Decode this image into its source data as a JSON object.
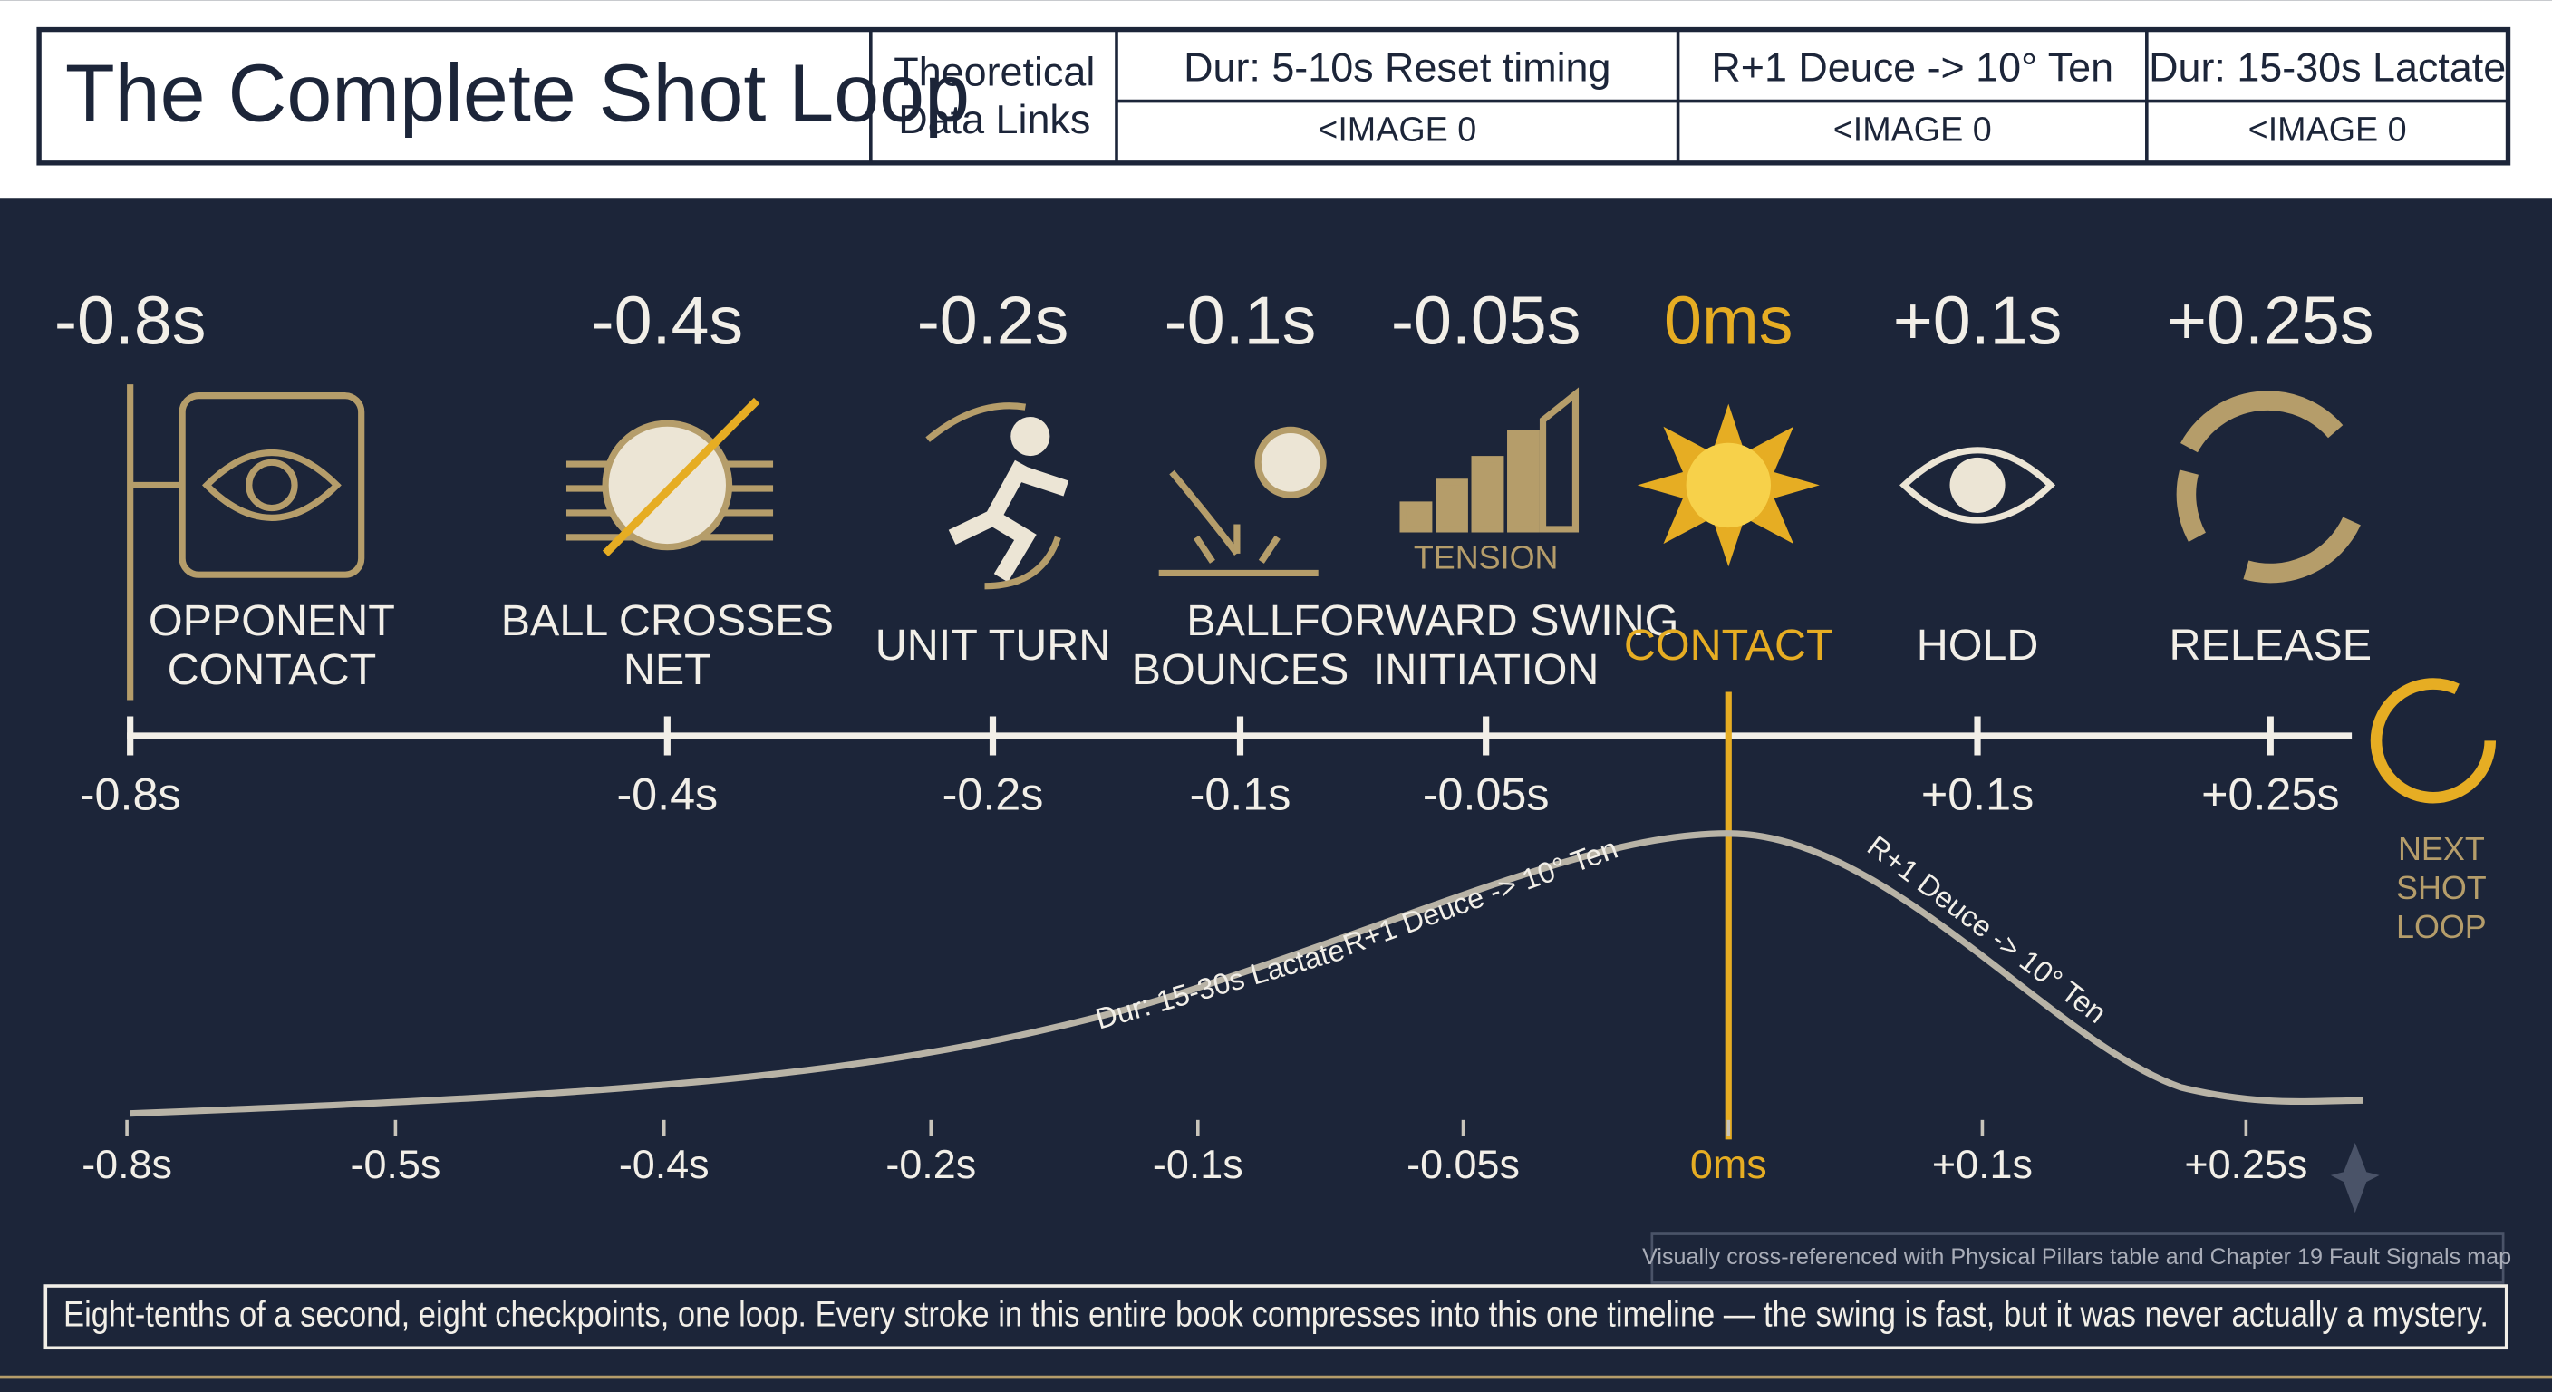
{
  "header": {
    "title": "The Complete Shot Loop",
    "links_label": [
      "Theoretical",
      "Data Links"
    ],
    "columns": [
      {
        "head": "Dur: 5-10s Reset timing",
        "cell": "<IMAGE 0"
      },
      {
        "head": "R+1 Deuce -> 10° Ten",
        "cell": "<IMAGE 0"
      },
      {
        "head": "Dur: 15-30s Lactate",
        "cell": "<IMAGE 0"
      }
    ]
  },
  "checkpoints": [
    {
      "time": "-0.8s",
      "label": [
        "OPPONENT",
        "CONTACT"
      ],
      "axis_label": "-0.8s",
      "color": "#f2efe8"
    },
    {
      "time": "-0.4s",
      "label": [
        "BALL CROSSES",
        "NET"
      ],
      "axis_label": "-0.4s",
      "color": "#f2efe8"
    },
    {
      "time": "-0.2s",
      "label": [
        "UNIT TURN"
      ],
      "axis_label": "-0.2s",
      "color": "#f2efe8"
    },
    {
      "time": "-0.1s",
      "label": [
        "BALL",
        "BOUNCES"
      ],
      "axis_label": "-0.1s",
      "color": "#f2efe8"
    },
    {
      "time": "-0.05s",
      "label": [
        "FORWARD SWING",
        "INITIATION"
      ],
      "axis_label": "-0.05s",
      "icon_text": "TENSION",
      "color": "#f2efe8"
    },
    {
      "time": "0ms",
      "label": [
        "CONTACT"
      ],
      "color": "#e6ad23"
    },
    {
      "time": "+0.1s",
      "label": [
        "HOLD"
      ],
      "axis_label": "+0.1s",
      "color": "#f2efe8"
    },
    {
      "time": "+0.25s",
      "label": [
        "RELEASE"
      ],
      "axis_label": "+0.25s",
      "color": "#f2efe8"
    }
  ],
  "bottom_axis": [
    {
      "label": "-0.8s",
      "color": "#f2efe8"
    },
    {
      "label": "-0.5s",
      "color": "#f2efe8"
    },
    {
      "label": "-0.4s",
      "color": "#f2efe8"
    },
    {
      "label": "-0.2s",
      "color": "#f2efe8"
    },
    {
      "label": "-0.1s",
      "color": "#f2efe8"
    },
    {
      "label": "-0.05s",
      "color": "#f2efe8"
    },
    {
      "label": "0ms",
      "color": "#e6ad23"
    },
    {
      "label": "+0.1s",
      "color": "#f2efe8"
    },
    {
      "label": "+0.25s",
      "color": "#f2efe8"
    }
  ],
  "curve_labels": [
    "Dur: 15-30s Lactate",
    "R+1 Deuce -> 10° Ten",
    "R+1 Deuce -> 10° Ten"
  ],
  "next_loop": [
    "NEXT",
    "SHOT",
    "LOOP"
  ],
  "note": "Visually cross-referenced with Physical Pillars table and Chapter 19 Fault Signals map",
  "caption": "Eight-tenths of a second, eight checkpoints, one loop. Every stroke in this entire book compresses into this one timeline — the swing is fast, but it was never actually a mystery."
}
